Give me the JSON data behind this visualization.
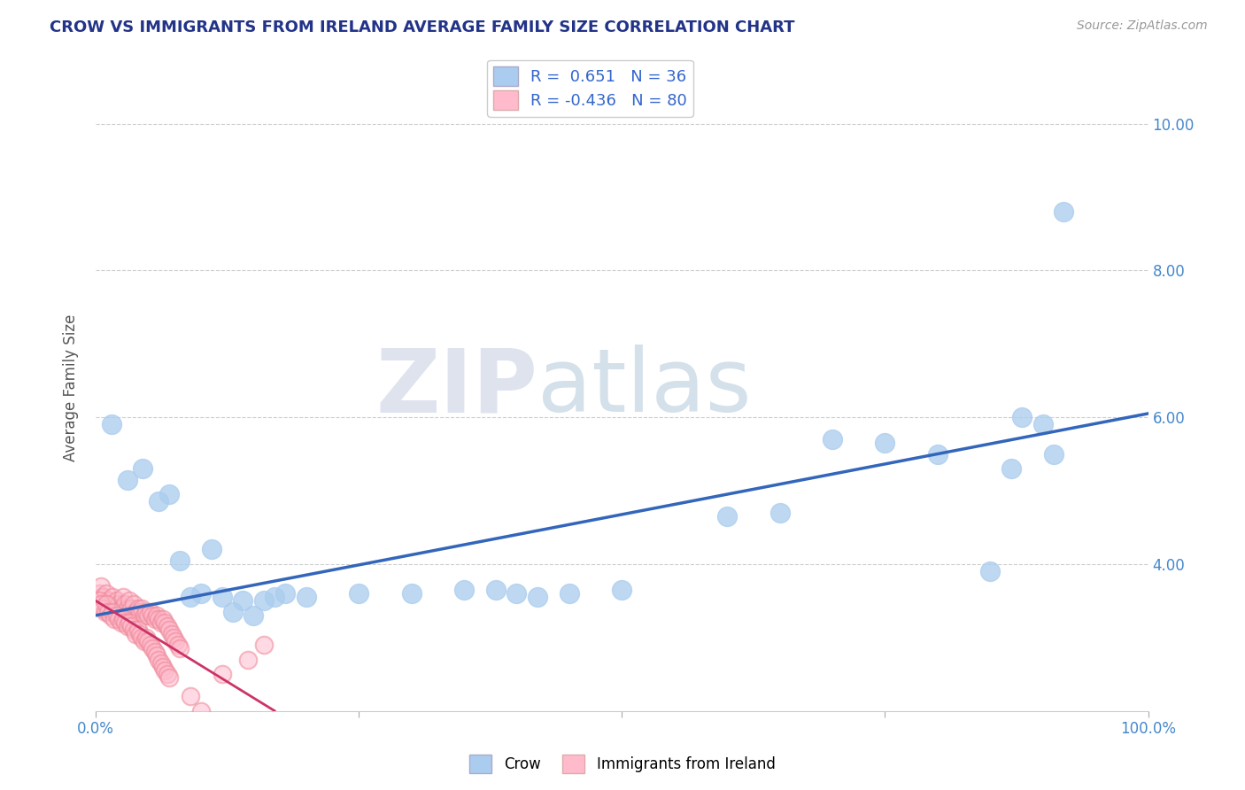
{
  "title": "CROW VS IMMIGRANTS FROM IRELAND AVERAGE FAMILY SIZE CORRELATION CHART",
  "source": "Source: ZipAtlas.com",
  "ylabel": "Average Family Size",
  "xlim": [
    0,
    1.0
  ],
  "ylim": [
    2.0,
    10.8
  ],
  "yticks": [
    4.0,
    6.0,
    8.0,
    10.0
  ],
  "xticks": [
    0.0,
    0.25,
    0.5,
    0.75,
    1.0
  ],
  "xticklabels_show": [
    "0.0%",
    "100.0%"
  ],
  "background_color": "#ffffff",
  "grid_color": "#cccccc",
  "crow_R": 0.651,
  "crow_N": 36,
  "ireland_R": -0.436,
  "ireland_N": 80,
  "crow_color": "#aaccee",
  "crow_edge_color": "#aaccee",
  "crow_line_color": "#3366bb",
  "ireland_color": "#ffbbcc",
  "ireland_edge_color": "#ee8899",
  "ireland_line_color": "#cc3366",
  "crow_scatter_x": [
    0.015,
    0.03,
    0.045,
    0.06,
    0.07,
    0.08,
    0.09,
    0.1,
    0.11,
    0.12,
    0.13,
    0.14,
    0.15,
    0.16,
    0.17,
    0.18,
    0.2,
    0.25,
    0.3,
    0.35,
    0.38,
    0.4,
    0.42,
    0.45,
    0.5,
    0.6,
    0.65,
    0.7,
    0.75,
    0.8,
    0.85,
    0.87,
    0.88,
    0.9,
    0.91,
    0.92
  ],
  "crow_scatter_y": [
    5.9,
    5.15,
    5.3,
    4.85,
    4.95,
    4.05,
    3.55,
    3.6,
    4.2,
    3.55,
    3.35,
    3.5,
    3.3,
    3.5,
    3.55,
    3.6,
    3.55,
    3.6,
    3.6,
    3.65,
    3.65,
    3.6,
    3.55,
    3.6,
    3.65,
    4.65,
    4.7,
    5.7,
    5.65,
    5.5,
    3.9,
    5.3,
    6.0,
    5.9,
    5.5,
    8.8
  ],
  "ireland_scatter_x": [
    0.003,
    0.005,
    0.007,
    0.009,
    0.01,
    0.012,
    0.014,
    0.016,
    0.018,
    0.02,
    0.022,
    0.024,
    0.026,
    0.028,
    0.03,
    0.032,
    0.034,
    0.036,
    0.038,
    0.04,
    0.042,
    0.044,
    0.046,
    0.048,
    0.05,
    0.052,
    0.054,
    0.056,
    0.058,
    0.06,
    0.062,
    0.064,
    0.066,
    0.068,
    0.07,
    0.072,
    0.074,
    0.076,
    0.078,
    0.08,
    0.003,
    0.005,
    0.007,
    0.009,
    0.01,
    0.012,
    0.014,
    0.016,
    0.018,
    0.02,
    0.022,
    0.024,
    0.026,
    0.028,
    0.03,
    0.032,
    0.034,
    0.036,
    0.038,
    0.04,
    0.042,
    0.044,
    0.046,
    0.048,
    0.05,
    0.052,
    0.054,
    0.056,
    0.058,
    0.06,
    0.062,
    0.064,
    0.066,
    0.068,
    0.07,
    0.09,
    0.1,
    0.12,
    0.145,
    0.16
  ],
  "ireland_scatter_y": [
    3.6,
    3.7,
    3.55,
    3.45,
    3.6,
    3.5,
    3.45,
    3.55,
    3.4,
    3.5,
    3.45,
    3.4,
    3.55,
    3.45,
    3.4,
    3.5,
    3.4,
    3.45,
    3.35,
    3.4,
    3.35,
    3.4,
    3.3,
    3.35,
    3.3,
    3.35,
    3.3,
    3.25,
    3.3,
    3.25,
    3.2,
    3.25,
    3.2,
    3.15,
    3.1,
    3.05,
    3.0,
    2.95,
    2.9,
    2.85,
    3.5,
    3.45,
    3.4,
    3.35,
    3.45,
    3.35,
    3.3,
    3.35,
    3.25,
    3.3,
    3.25,
    3.2,
    3.25,
    3.2,
    3.15,
    3.2,
    3.15,
    3.1,
    3.05,
    3.1,
    3.05,
    3.0,
    2.95,
    3.0,
    2.95,
    2.9,
    2.85,
    2.8,
    2.75,
    2.7,
    2.65,
    2.6,
    2.55,
    2.5,
    2.45,
    2.2,
    2.0,
    2.5,
    2.7,
    2.9
  ],
  "crow_trend_x": [
    0.0,
    1.0
  ],
  "crow_trend_y": [
    3.3,
    6.05
  ],
  "ireland_trend_x": [
    0.0,
    0.17
  ],
  "ireland_trend_y": [
    3.5,
    2.0
  ]
}
